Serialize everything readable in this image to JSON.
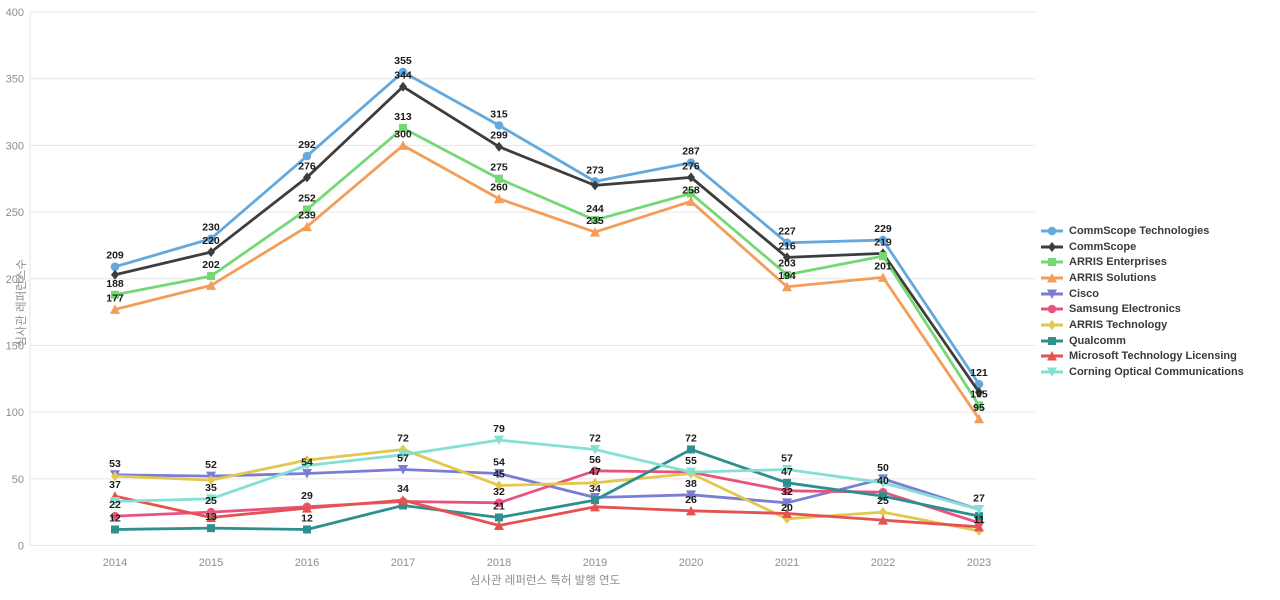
{
  "chart_data": {
    "type": "line",
    "title": "",
    "xlabel": "심사관 레퍼런스 특허 발행 연도",
    "ylabel": "심사관 레퍼런스수",
    "ylim": [
      0,
      400
    ],
    "yticks": [
      0,
      50,
      100,
      150,
      200,
      250,
      300,
      350,
      400
    ],
    "grid": true,
    "legend_position": "right",
    "categories": [
      "2014",
      "2015",
      "2016",
      "2017",
      "2018",
      "2019",
      "2020",
      "2021",
      "2022",
      "2023"
    ],
    "series": [
      {
        "name": "CommScope Technologies",
        "color": "#64a9dd",
        "marker": "circle",
        "values": [
          209,
          230,
          292,
          355,
          315,
          273,
          287,
          227,
          229,
          121
        ],
        "labeled": [
          true,
          true,
          true,
          true,
          true,
          true,
          true,
          true,
          true,
          true
        ]
      },
      {
        "name": "CommScope",
        "color": "#3d3d3d",
        "marker": "diamond",
        "values": [
          203,
          220,
          276,
          344,
          299,
          270,
          276,
          216,
          219,
          115
        ],
        "labeled": [
          false,
          true,
          true,
          true,
          true,
          false,
          true,
          true,
          true,
          false
        ]
      },
      {
        "name": "ARRIS Enterprises",
        "color": "#74d874",
        "marker": "square",
        "values": [
          188,
          202,
          252,
          313,
          275,
          244,
          264,
          203,
          217,
          105
        ],
        "labeled": [
          true,
          true,
          true,
          true,
          true,
          true,
          false,
          true,
          false,
          true
        ]
      },
      {
        "name": "ARRIS Solutions",
        "color": "#f39e58",
        "marker": "triangle-up",
        "values": [
          177,
          195,
          239,
          300,
          260,
          235,
          258,
          194,
          201,
          95
        ],
        "labeled": [
          true,
          false,
          true,
          true,
          true,
          true,
          true,
          true,
          true,
          true
        ]
      },
      {
        "name": "Cisco",
        "color": "#7b7dd4",
        "marker": "triangle-down",
        "values": [
          53,
          52,
          54,
          57,
          54,
          36,
          38,
          32,
          50,
          27
        ],
        "labeled": [
          true,
          true,
          true,
          true,
          true,
          false,
          true,
          true,
          true,
          true
        ]
      },
      {
        "name": "Samsung Electronics",
        "color": "#e8537e",
        "marker": "circle",
        "values": [
          22,
          25,
          29,
          33,
          32,
          56,
          55,
          41,
          40,
          17
        ],
        "labeled": [
          true,
          true,
          true,
          false,
          true,
          true,
          false,
          false,
          true,
          false
        ]
      },
      {
        "name": "ARRIS Technology",
        "color": "#e2c84e",
        "marker": "diamond",
        "values": [
          52,
          49,
          64,
          72,
          45,
          47,
          54,
          20,
          25,
          11
        ],
        "labeled": [
          false,
          false,
          false,
          true,
          true,
          true,
          false,
          true,
          true,
          true
        ]
      },
      {
        "name": "Qualcomm",
        "color": "#2e8f8f",
        "marker": "square",
        "values": [
          12,
          13,
          12,
          30,
          21,
          34,
          72,
          47,
          37,
          22
        ],
        "labeled": [
          true,
          true,
          true,
          false,
          true,
          true,
          true,
          true,
          false,
          false
        ]
      },
      {
        "name": "Microsoft Technology Licensing",
        "color": "#e65151",
        "marker": "triangle-up",
        "values": [
          37,
          21,
          28,
          34,
          15,
          29,
          26,
          24,
          19,
          14
        ],
        "labeled": [
          true,
          false,
          false,
          true,
          false,
          false,
          true,
          false,
          false,
          false
        ]
      },
      {
        "name": "Corning Optical Communications",
        "color": "#84e0d3",
        "marker": "triangle-down",
        "values": [
          33,
          35,
          60,
          68,
          79,
          72,
          55,
          57,
          47,
          27
        ],
        "labeled": [
          false,
          true,
          false,
          false,
          true,
          true,
          true,
          true,
          false,
          false
        ]
      }
    ]
  }
}
